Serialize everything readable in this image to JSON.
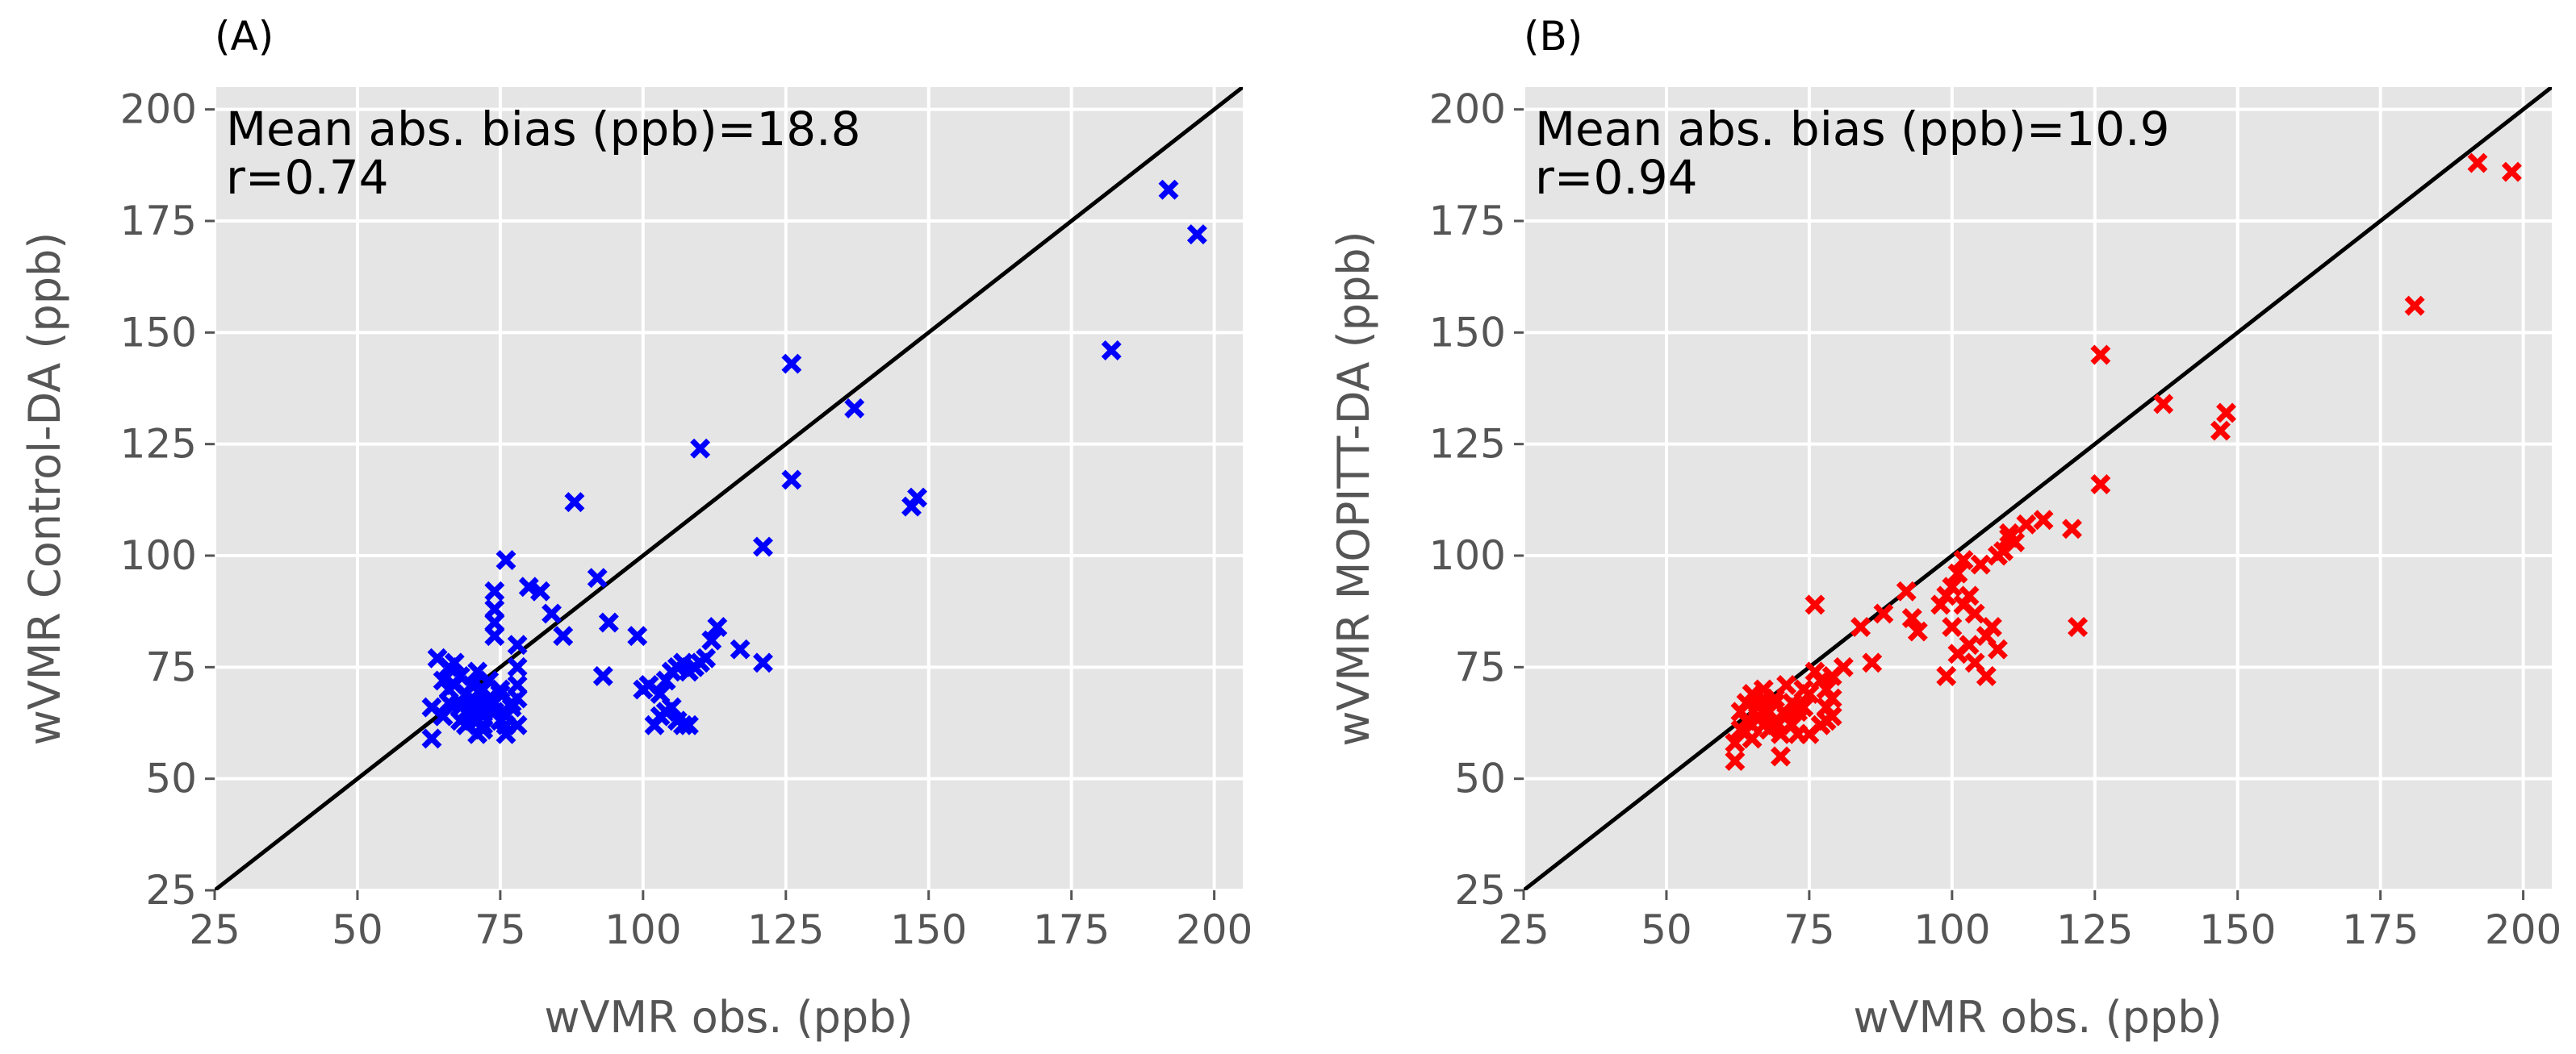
{
  "chart_data": [
    {
      "type": "scatter",
      "panel_label": "(A)",
      "xlabel": "wVMR obs. (ppb)",
      "ylabel": "wVMR Control-DA (ppb)",
      "xlim": [
        25,
        205
      ],
      "ylim": [
        25,
        205
      ],
      "xticks": [
        25,
        50,
        75,
        100,
        125,
        150,
        175,
        200
      ],
      "yticks": [
        25,
        50,
        75,
        100,
        125,
        150,
        175,
        200
      ],
      "grid": true,
      "reference_line": "1:1",
      "marker": "x",
      "color": "#0000ff",
      "annotations": [
        "Mean abs. bias (ppb)=18.8",
        "r=0.74"
      ],
      "x": [
        192,
        197,
        182,
        126,
        137,
        147,
        148,
        110,
        126,
        121,
        121,
        88,
        76,
        92,
        80,
        82,
        74,
        74,
        74,
        74,
        78,
        78,
        78,
        78,
        78,
        84,
        86,
        93,
        94,
        99,
        101,
        100,
        103,
        104,
        105,
        106,
        107,
        108,
        109,
        110,
        111,
        112,
        113,
        117,
        102,
        103,
        104,
        105,
        106,
        107,
        108,
        64,
        65,
        66,
        66,
        67,
        68,
        68,
        69,
        69,
        70,
        70,
        71,
        71,
        71,
        72,
        72,
        72,
        73,
        73,
        73,
        74,
        75,
        75,
        76,
        76,
        77,
        63,
        63,
        65,
        66,
        67,
        68,
        69,
        70,
        71,
        72,
        73,
        74,
        75,
        76,
        77
      ],
      "y": [
        182,
        172,
        146,
        143,
        133,
        111,
        113,
        124,
        117,
        102,
        76,
        112,
        99,
        95,
        93,
        92,
        92,
        88,
        85,
        82,
        80,
        75,
        71,
        68,
        62,
        87,
        82,
        73,
        85,
        82,
        71,
        70,
        69,
        72,
        74,
        75,
        76,
        74,
        75,
        76,
        77,
        81,
        84,
        79,
        62,
        64,
        65,
        66,
        63,
        62,
        62,
        77,
        72,
        70,
        75,
        76,
        73,
        66,
        62,
        65,
        68,
        71,
        60,
        63,
        67,
        61,
        64,
        70,
        66,
        68,
        72,
        65,
        63,
        69,
        60,
        62,
        67,
        66,
        59,
        64,
        67,
        71,
        63,
        69,
        65,
        74,
        62,
        68,
        67,
        70,
        64,
        66
      ]
    },
    {
      "type": "scatter",
      "panel_label": "(B)",
      "xlabel": "wVMR obs. (ppb)",
      "ylabel": "wVMR MOPITT-DA (ppb)",
      "xlim": [
        25,
        205
      ],
      "ylim": [
        25,
        205
      ],
      "xticks": [
        25,
        50,
        75,
        100,
        125,
        150,
        175,
        200
      ],
      "yticks": [
        25,
        50,
        75,
        100,
        125,
        150,
        175,
        200
      ],
      "grid": true,
      "reference_line": "1:1",
      "marker": "x",
      "color": "#ff0000",
      "annotations": [
        "Mean abs. bias (ppb)=10.9",
        "r=0.94"
      ],
      "x": [
        192,
        198,
        181,
        126,
        137,
        147,
        148,
        126,
        121,
        122,
        116,
        113,
        111,
        110,
        109,
        108,
        108,
        107,
        106,
        106,
        105,
        104,
        104,
        103,
        103,
        102,
        102,
        101,
        101,
        100,
        100,
        99,
        99,
        98,
        94,
        93,
        92,
        88,
        86,
        84,
        81,
        79,
        79,
        78,
        78,
        78,
        77,
        76,
        76,
        75,
        74,
        74,
        73,
        73,
        72,
        72,
        71,
        71,
        70,
        70,
        69,
        69,
        68,
        68,
        67,
        67,
        66,
        66,
        65,
        65,
        64,
        64,
        63,
        62,
        62,
        79,
        77,
        75,
        73,
        71,
        69,
        67,
        65,
        63,
        110
      ],
      "y": [
        188,
        186,
        156,
        145,
        134,
        128,
        132,
        116,
        106,
        84,
        108,
        107,
        103,
        105,
        101,
        100,
        79,
        84,
        82,
        73,
        98,
        87,
        76,
        91,
        80,
        99,
        89,
        78,
        96,
        93,
        84,
        91,
        73,
        89,
        83,
        86,
        92,
        87,
        76,
        84,
        75,
        68,
        73,
        70,
        63,
        66,
        72,
        89,
        74,
        69,
        70,
        66,
        65,
        60,
        62,
        67,
        71,
        64,
        60,
        55,
        63,
        68,
        61,
        65,
        70,
        62,
        66,
        64,
        69,
        59,
        63,
        67,
        61,
        54,
        58,
        64,
        62,
        60,
        66,
        64,
        67,
        68,
        62,
        65,
        104
      ]
    }
  ]
}
